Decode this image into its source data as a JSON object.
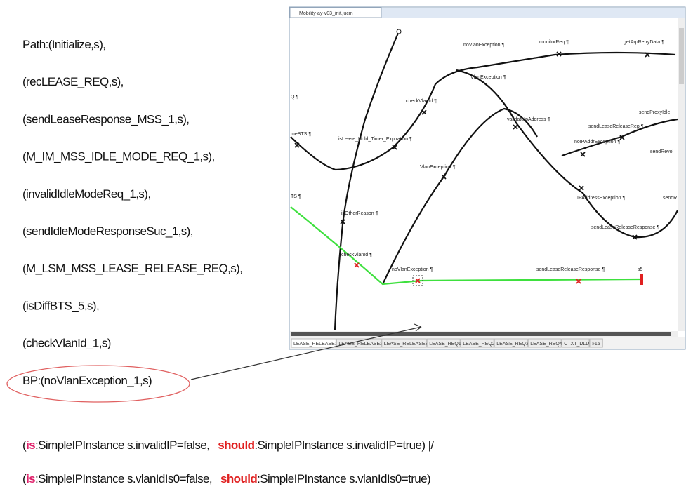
{
  "path_lines": [
    "Path:(Initialize,s),",
    "(recLEASE_REQ,s),",
    "(sendLeaseResponse_MSS_1,s),",
    "(M_IM_MSS_IDLE_MODE_REQ_1,s),",
    "(invalidIdleModeReq_1,s),",
    "(sendIdleModeResponseSuc_1,s),",
    "(M_LSM_MSS_LEASE_RELEASE_REQ,s),",
    "(isDiffBTS_5,s),",
    "(checkVlanId_1,s)",
    "BP:(noVlanException_1,s)"
  ],
  "editor": {
    "tab_title": "Mobility-ay-v03_init.jucm",
    "labels": [
      "noVlanException ¶",
      "monitorReq ¶",
      "getArpRetryData ¶",
      "Q ¶",
      "checkVlanId ¶",
      "VlanException ¶",
      "validateIpAddress ¶",
      "sendProxyIdle",
      "meBTS ¶",
      "isLease_Hold_Timer_Expiration ¶",
      "sendLeaseReleaseRep ¶",
      "noIPAddrException ¶",
      "sendRevol",
      "VlanException ¶",
      "IPAddressException ¶",
      "sendR",
      "TS ¶",
      "isOtherReason ¶",
      "sendLeaseReleaseResponse ¶",
      "checkVlanId ¶",
      "noVlanException ¶",
      "sendLeaseReleaseResponse ¶",
      "s5"
    ],
    "tabs": [
      "LEASE_RELEASE1",
      "LEASE_RELEASE2",
      "LEASE_RELEASE3",
      "LEASE_REQ1",
      "LEASE_REQ2",
      "LEASE_REQ3",
      "LEASE_REQ4",
      "CTXT_DLD",
      "»15"
    ]
  },
  "conditions": [
    {
      "open": "(",
      "is": "is",
      "is_text": ":SimpleIPInstance s.invalidIP=false,",
      "should": "should",
      "should_text": ":SimpleIPInstance s.invalidIP=true) |/"
    },
    {
      "open": "(",
      "is": "is",
      "is_text": ":SimpleIPInstance s.vlanIdIs0=false,",
      "should": "should",
      "should_text": ":SimpleIPInstance s.vlanIdIs0=true)"
    }
  ]
}
